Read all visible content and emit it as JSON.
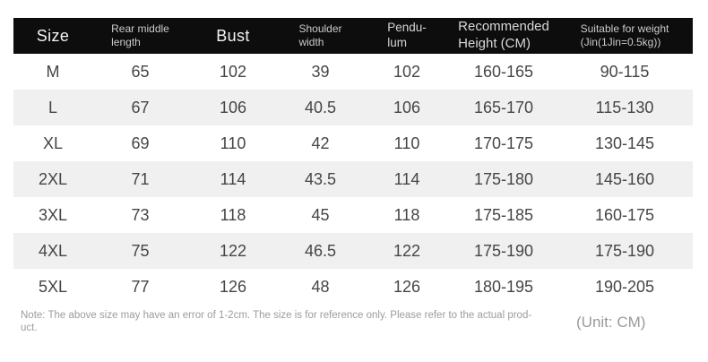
{
  "chart_data": {
    "type": "table",
    "columns": [
      {
        "key": "size",
        "label": "Size",
        "lines": [
          "Size"
        ],
        "style": "large"
      },
      {
        "key": "rear_middle_length",
        "label": "Rear middle length",
        "lines": [
          "Rear middle",
          "length"
        ],
        "style": "small"
      },
      {
        "key": "bust",
        "label": "Bust",
        "lines": [
          "Bust"
        ],
        "style": "large"
      },
      {
        "key": "shoulder_width",
        "label": "Shoulder width",
        "lines": [
          "Shoulder",
          "width"
        ],
        "style": "small"
      },
      {
        "key": "pendulum",
        "label": "Pendulum",
        "lines": [
          "Pendu-",
          "lum"
        ],
        "style": "medium"
      },
      {
        "key": "recommended_height_cm",
        "label": "Recommended Height (CM)",
        "lines": [
          "Recommended",
          "Height (CM)"
        ],
        "style": "medium-large"
      },
      {
        "key": "suitable_weight",
        "label": "Suitable for weight (Jin(1Jin=0.5kg))",
        "lines": [
          "Suitable for weight",
          "(Jin(1Jin=0.5kg))"
        ],
        "style": "small"
      }
    ],
    "rows": [
      [
        "M",
        "65",
        "102",
        "39",
        "102",
        "160-165",
        "90-115"
      ],
      [
        "L",
        "67",
        "106",
        "40.5",
        "106",
        "165-170",
        "115-130"
      ],
      [
        "XL",
        "69",
        "110",
        "42",
        "110",
        "170-175",
        "130-145"
      ],
      [
        "2XL",
        "71",
        "114",
        "43.5",
        "114",
        "175-180",
        "145-160"
      ],
      [
        "3XL",
        "73",
        "118",
        "45",
        "118",
        "175-185",
        "160-175"
      ],
      [
        "4XL",
        "75",
        "122",
        "46.5",
        "122",
        "175-190",
        "175-190"
      ],
      [
        "5XL",
        "77",
        "126",
        "48",
        "126",
        "180-195",
        "190-205"
      ]
    ]
  },
  "note": {
    "line1": "Note: The above size may have an error of 1-2cm. The size is for reference only. Please refer to the actual prod-",
    "line2": "uct."
  },
  "unit_label": "(Unit: CM)",
  "colors": {
    "header_bg": "#0d0d0d",
    "header_text_primary": "#f4f4f4",
    "header_text_secondary": "#cbcbcb",
    "row_bg": "#ffffff",
    "row_alt_bg": "#f0f0f0",
    "cell_text": "#454545",
    "note_text": "#9c9c9c"
  }
}
